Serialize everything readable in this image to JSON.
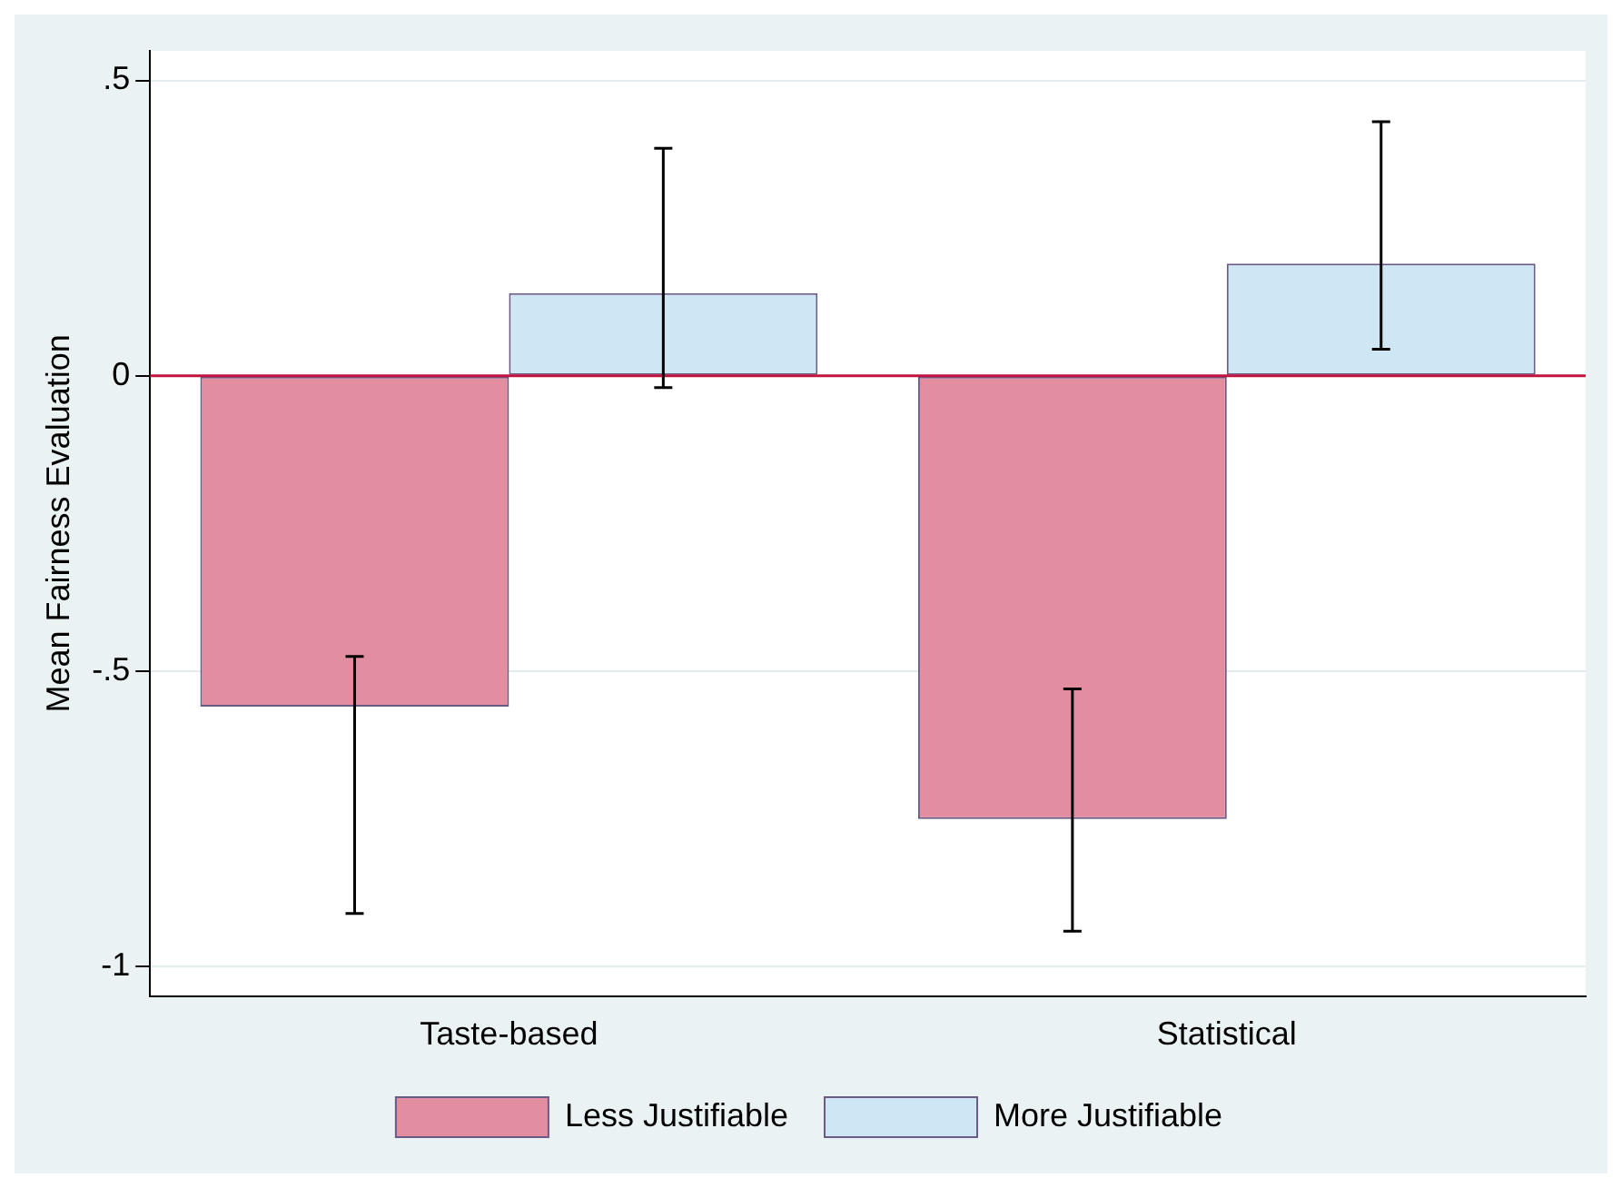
{
  "chart_data": {
    "type": "bar",
    "ylabel": "Mean Fairness Evaluation",
    "categories": [
      "Taste-based",
      "Statistical"
    ],
    "series": [
      {
        "name": "Less Justifiable",
        "color": "#e38ea0",
        "values": [
          -0.56,
          -0.75
        ],
        "errors": [
          [
            -0.91,
            -0.475
          ],
          [
            -0.94,
            -0.53
          ]
        ]
      },
      {
        "name": "More Justifiable",
        "color": "#cfe6f4",
        "values": [
          0.14,
          0.19
        ],
        "errors": [
          [
            -0.02,
            0.385
          ],
          [
            0.045,
            0.43
          ]
        ]
      }
    ],
    "ylim": [
      -1.05,
      0.55
    ],
    "yticks": [
      {
        "value": 0.5,
        "label": ".5"
      },
      0,
      {
        "value": -0.5,
        "label": "-.5"
      },
      -1
    ],
    "ref_lines": [
      {
        "axis": "y",
        "value": 0,
        "color": "#c0143c"
      }
    ],
    "grid": "y",
    "legend": "bottom"
  }
}
